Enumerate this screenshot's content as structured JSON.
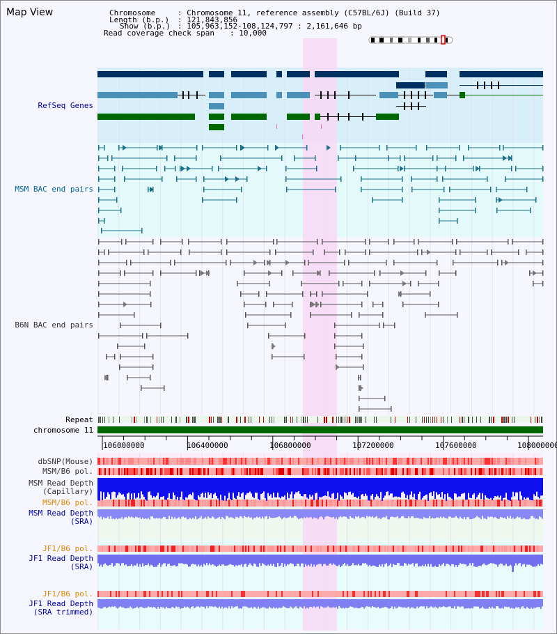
{
  "view_title": "Map View",
  "info": {
    "chromosome_label": "Chromosome",
    "chromosome_value": ": Chromosome 11, reference assembly (C57BL/6J) (Build 37)",
    "length_label": "Length (b.p.)",
    "length_value": ": 121,843,856",
    "show_label": "Show (b.p.)",
    "show_value": ": 105,963,152-108,124,797 : 2,161,646 bp",
    "span_label": "Read coverage check span",
    "span_value": ": 10,000"
  },
  "tracks": {
    "refseq": "RefSeq Genes",
    "msm_bac": "MSM BAC end pairs",
    "b6n_bac": "B6N BAC end pairs",
    "repeat": "Repeat",
    "chromosome": "chromosome 11",
    "dbsnp": "dbSNP(Mouse)",
    "msm_b6_pol_1": "MSM/B6 pol.",
    "msm_depth_cap_1": "MSM Read Depth",
    "msm_depth_cap_2": "(Capillary)",
    "msm_b6_pol_2": "MSM/B6 pol.",
    "msm_depth_sra_1": "MSM Read Depth",
    "msm_depth_sra_2": "(SRA)",
    "jf1_b6_pol_1": "JF1/B6 pol.",
    "jf1_depth_sra_1": "JF1 Read Depth",
    "jf1_depth_sra_2": "(SRA)",
    "jf1_b6_pol_2": "JF1/B6 pol.",
    "jf1_depth_trim_1": "JF1 Read Depth",
    "jf1_depth_trim_2": "(SRA trimmed)"
  },
  "axis": {
    "ticks": [
      "106000000",
      "106400000",
      "106800000",
      "107200000",
      "107600000",
      "108000000"
    ]
  },
  "colors": {
    "refseq_dark": "#00305f",
    "refseq_mid": "#4a90b8",
    "refseq_green": "#006600",
    "msm_line": "#1a6f8a",
    "b6n_line": "#555555",
    "highlight": "#f8d8f4",
    "chrom_bar": "#006600",
    "depth_blue": "#1010ee",
    "depth_light": "#7a7af5"
  }
}
